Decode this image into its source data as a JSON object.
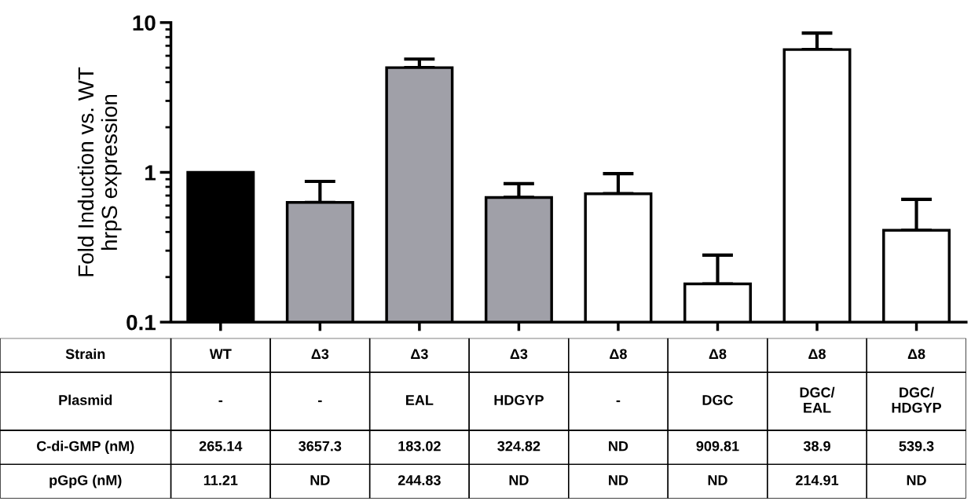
{
  "chart_data": {
    "type": "bar",
    "ylabel": "Fold Induction vs. WT\nhrpS expression",
    "categories": [
      "WT",
      "Δ3",
      "Δ3",
      "Δ3",
      "Δ8",
      "Δ8",
      "Δ8",
      "Δ8"
    ],
    "values": [
      1.0,
      0.63,
      5.0,
      0.68,
      0.72,
      0.18,
      6.6,
      0.41
    ],
    "errors": [
      null,
      [
        0.63,
        0.87
      ],
      [
        5.0,
        5.7
      ],
      [
        0.68,
        0.84
      ],
      [
        0.72,
        0.98
      ],
      [
        0.18,
        0.28
      ],
      [
        6.6,
        8.5
      ],
      [
        0.41,
        0.66
      ]
    ],
    "colors": [
      "#000000",
      "#a0a0a8",
      "#a0a0a8",
      "#a0a0a8",
      "#ffffff",
      "#ffffff",
      "#ffffff",
      "#ffffff"
    ],
    "log": "y",
    "ylim": [
      0.1,
      10
    ],
    "yticks": [
      0.1,
      1,
      10
    ],
    "tick_labels": "y",
    "grid": false,
    "annotations": [
      "Strain",
      "Plasmid",
      "-",
      "-",
      "EAL",
      "HDGYP",
      "-",
      "DGC",
      "DGC/\nEAL",
      "DGC/\nHDGYP",
      "C-di-GMP (nM)",
      "265.14",
      "3657.3",
      "183.02",
      "324.82",
      "ND",
      "909.81",
      "38.9",
      "539.3",
      "pGpG (nM)",
      "11.21",
      "ND",
      "244.83",
      "ND",
      "ND",
      "ND",
      "214.91",
      "ND"
    ]
  }
}
